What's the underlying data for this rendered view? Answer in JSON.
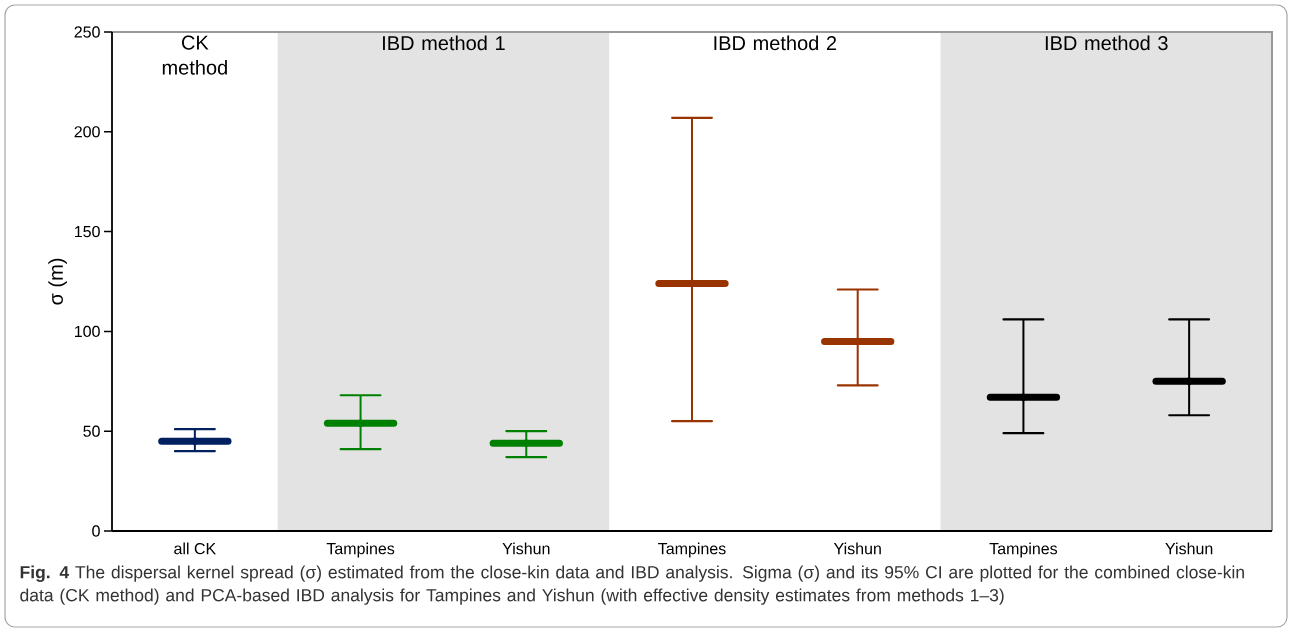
{
  "chart_data": {
    "type": "scatter",
    "ylabel": "σ (m)",
    "categories": [
      "all CK",
      "Tampines",
      "Yishun",
      "Tampines",
      "Yishun",
      "Tampines",
      "Yishun"
    ],
    "values": [
      45,
      54,
      44,
      124,
      95,
      67,
      75
    ],
    "errors": [
      [
        40,
        51
      ],
      [
        41,
        68
      ],
      [
        37,
        50
      ],
      [
        55,
        207
      ],
      [
        73,
        121
      ],
      [
        49,
        106
      ],
      [
        58,
        106
      ]
    ],
    "colors": [
      "#002060",
      "#008000",
      "#008000",
      "#993300",
      "#993300",
      "#000000",
      "#000000"
    ],
    "ylim": [
      0,
      250
    ],
    "yticks": [
      0,
      50,
      100,
      150,
      200,
      250
    ],
    "annotations": [
      "CK method",
      "IBD method 1",
      "IBD method 2",
      "IBD method 3",
      "**Fig. 4** The dispersal kernel spread (σ) estimated from the close-kin data and IBD analysis. Sigma (σ) and its 95% CI are plotted for the combined close-kin data (CK method) and PCA-based IBD analysis for Tampines and Yishun (with effective density estimates from methods 1–3)"
    ]
  }
}
